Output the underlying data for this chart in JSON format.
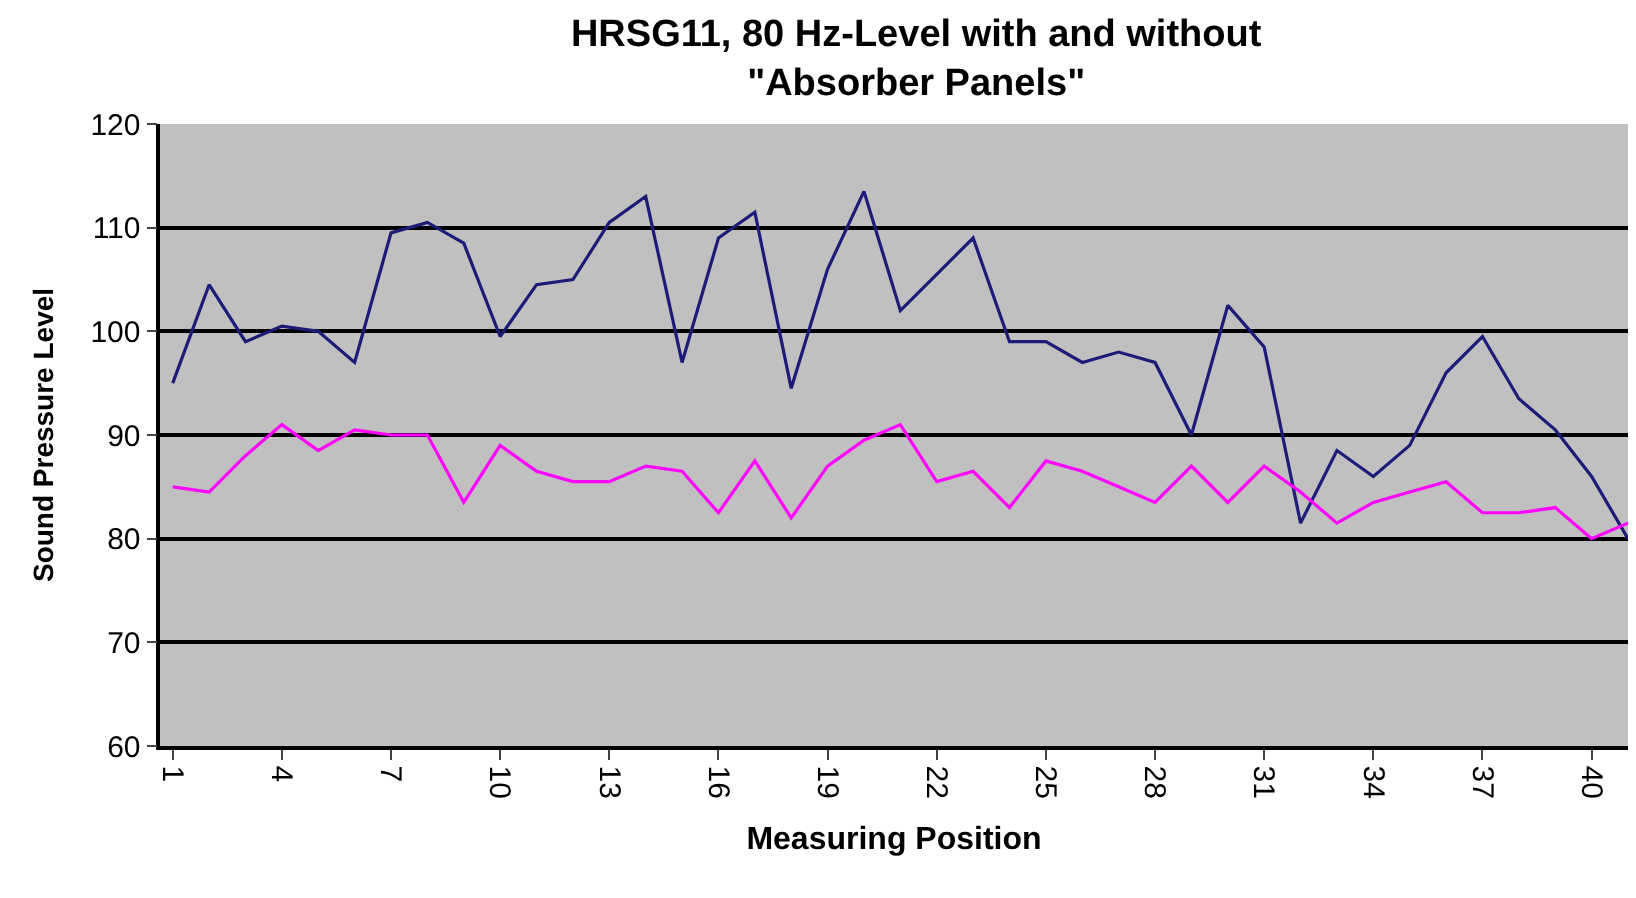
{
  "chart_data": {
    "type": "line",
    "title": "HRSG11, 80 Hz-Level with and without \"Absorber Panels\"",
    "xlabel": "Measuring Position",
    "ylabel": "Sound Pressure Level",
    "categories": [
      "1",
      null,
      null,
      "4",
      null,
      null,
      "7",
      null,
      null,
      "10",
      null,
      null,
      "13",
      null,
      null,
      "16",
      null,
      null,
      "19",
      null,
      null,
      "22",
      null,
      null,
      "25",
      null,
      null,
      "28",
      null,
      null,
      "31",
      null,
      null,
      "34",
      null,
      null,
      "37",
      null,
      null,
      "40",
      null
    ],
    "series": [
      {
        "color": "#1c1c78",
        "values": [
          95,
          104.5,
          99,
          100.5,
          100,
          97,
          109.5,
          110.5,
          108.5,
          99.5,
          104.5,
          105,
          110.5,
          113,
          97,
          109,
          111.5,
          94.5,
          106,
          113.5,
          102,
          105.5,
          109,
          99,
          99,
          97,
          98,
          97,
          90,
          102.5,
          98.5,
          81.5,
          88.5,
          86,
          89,
          96,
          99.5,
          93.5,
          90.5,
          86,
          80
        ]
      },
      {
        "color": "#ff00ff",
        "values": [
          85,
          84.5,
          88,
          91,
          88.5,
          90.5,
          90,
          90,
          83.5,
          89,
          86.5,
          85.5,
          85.5,
          87,
          86.5,
          82.5,
          87.5,
          82,
          87,
          89.5,
          91,
          85.5,
          86.5,
          83,
          87.5,
          86.5,
          85,
          83.5,
          87,
          83.5,
          87,
          84.5,
          81.5,
          83.5,
          84.5,
          85.5,
          82.5,
          82.5,
          83,
          80,
          81.5
        ]
      }
    ],
    "ylim": [
      60,
      120
    ],
    "yticks": [
      60,
      70,
      80,
      90,
      100,
      110,
      120
    ],
    "grid": "y",
    "legend": false,
    "marker": "none",
    "line_style": "solid"
  }
}
